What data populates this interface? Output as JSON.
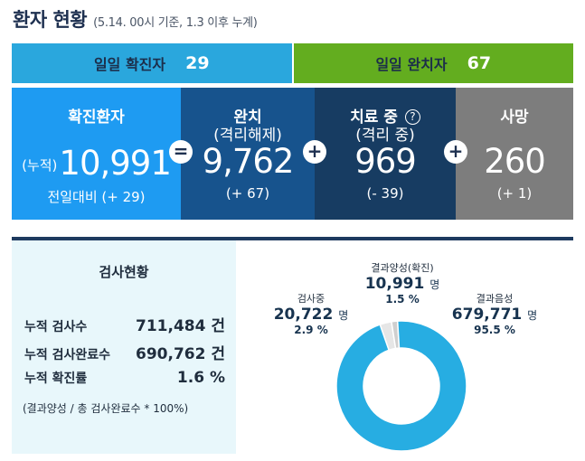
{
  "header": {
    "title": "환자 현황",
    "subtitle": "(5.14. 00시 기준, 1.3 이후 누계)"
  },
  "daily": {
    "confirmed_label": "일일 확진자",
    "confirmed_value": "29",
    "released_label": "일일 완치자",
    "released_value": "67"
  },
  "summary": {
    "confirmed": {
      "label": "확진환자",
      "prefix": "(누적)",
      "value": "10,991",
      "delta": "전일대비 (+ 29)"
    },
    "released": {
      "label": "완치",
      "sublabel": "(격리해제)",
      "value": "9,762",
      "delta": "(+ 67)"
    },
    "treating": {
      "label": "치료 중",
      "sublabel": "(격리 중)",
      "value": "969",
      "delta": "(- 39)",
      "help": "?"
    },
    "deceased": {
      "label": "사망",
      "value": "260",
      "delta": "(+ 1)"
    },
    "operators": {
      "equals": "=",
      "plus": "+"
    }
  },
  "tests": {
    "title": "검사현황",
    "rows": [
      {
        "label": "누적 검사수",
        "value": "711,484 건"
      },
      {
        "label": "누적 검사완료수",
        "value": "690,762 건"
      },
      {
        "label": "누적 확진률",
        "value": "1.6 %"
      }
    ],
    "note": "(결과양성 / 총 검사완료수 * 100%)"
  },
  "breakdown": {
    "testing": {
      "label": "검사중",
      "count": "20,722",
      "unit": "명",
      "percent": "2.9 %"
    },
    "positive": {
      "label": "결과양성(확진)",
      "count": "10,991",
      "unit": "명",
      "percent": "1.5 %"
    },
    "negative": {
      "label": "결과음성",
      "count": "679,771",
      "unit": "명",
      "percent": "95.5 %"
    }
  },
  "chart_data": {
    "type": "pie",
    "categories": [
      "검사중",
      "결과양성(확진)",
      "결과음성"
    ],
    "values": [
      2.9,
      1.5,
      95.5
    ],
    "colors": [
      "#e6e6e6",
      "#cfcfcf",
      "#27ade2"
    ]
  }
}
